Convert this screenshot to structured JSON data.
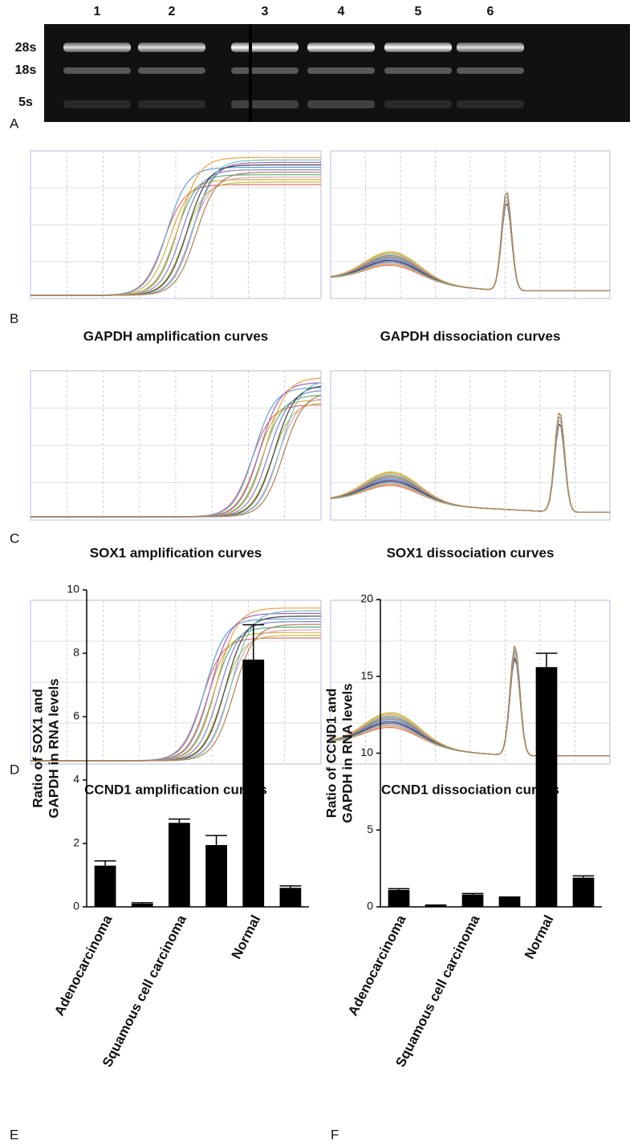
{
  "figure": {
    "gel": {
      "label": "A",
      "lanes": [
        "1",
        "2",
        "3",
        "4",
        "5",
        "6"
      ],
      "bands": [
        "28s",
        "18s",
        "5s"
      ]
    },
    "curve_panels": [
      {
        "label": "B",
        "captions": [
          "GAPDH amplification curves",
          "GAPDH dissociation curves"
        ]
      },
      {
        "label": "C",
        "captions": [
          "SOX1 amplification curves",
          "SOX1 dissociation curves"
        ]
      },
      {
        "label": "D",
        "captions": [
          "CCND1 amplification curves",
          "CCND1 dissociation curves"
        ]
      }
    ]
  },
  "chart_data": [
    {
      "type": "bar",
      "label": "E",
      "ylabel": [
        "Ratio of SOX1 and",
        "GAPDH in RNA levels"
      ],
      "categories": [
        "Adenocarcinoma",
        null,
        "Squamous cell carcinoma",
        null,
        "Normal",
        null
      ],
      "values": [
        1.3,
        0.1,
        2.65,
        1.95,
        7.8,
        0.6
      ],
      "errors": [
        0.15,
        0.03,
        0.12,
        0.3,
        1.1,
        0.06
      ],
      "color": "#000000",
      "ylim": [
        0,
        10
      ],
      "yticks": [
        0,
        2,
        4,
        6,
        8,
        10
      ]
    },
    {
      "type": "bar",
      "label": "F",
      "ylabel": [
        "Ratio of CCND1 and",
        "GAPDH in RNA levels"
      ],
      "categories": [
        "Adenocarcinoma",
        null,
        "Squamous cell carcinoma",
        null,
        "Normal",
        null
      ],
      "values": [
        1.1,
        0.1,
        0.8,
        0.6,
        15.6,
        1.9
      ],
      "errors": [
        0.08,
        0.02,
        0.07,
        0.04,
        0.9,
        0.12
      ],
      "color": "#000000",
      "ylim": [
        0,
        20
      ],
      "yticks": [
        0,
        5,
        10,
        15,
        20
      ]
    }
  ]
}
